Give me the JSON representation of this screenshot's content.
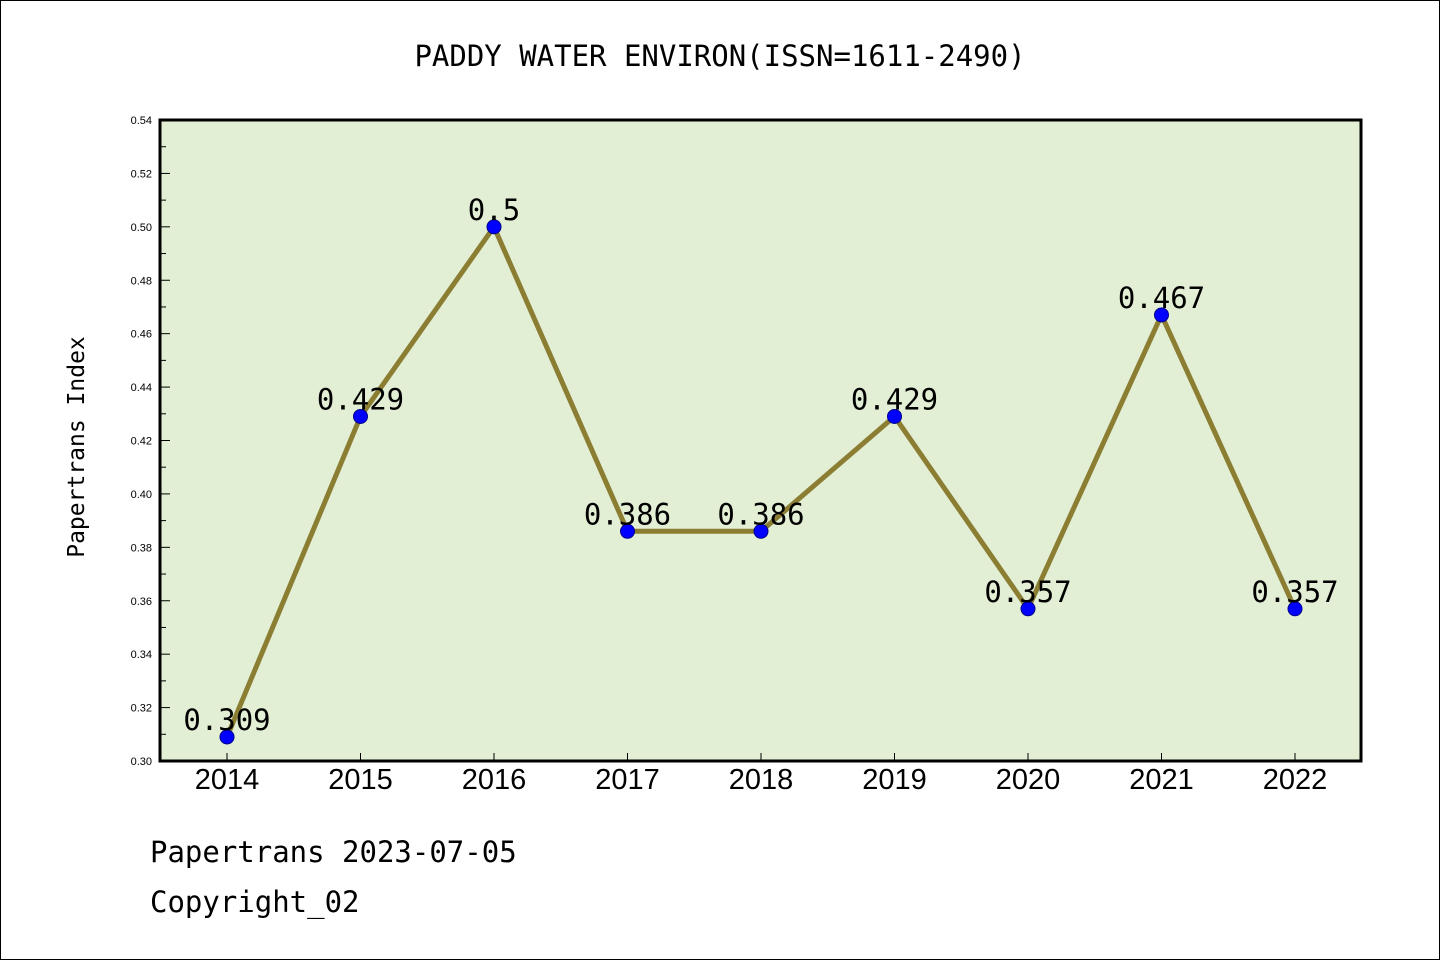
{
  "chart_data": {
    "type": "line",
    "title": "PADDY WATER ENVIRON(ISSN=1611-2490)",
    "xlabel": "",
    "ylabel": "Papertrans Index",
    "categories": [
      "2014",
      "2015",
      "2016",
      "2017",
      "2018",
      "2019",
      "2020",
      "2021",
      "2022"
    ],
    "series": [
      {
        "values": [
          0.309,
          0.429,
          0.5,
          0.386,
          0.386,
          0.429,
          0.357,
          0.467,
          0.357
        ],
        "labels": [
          "0.309",
          "0.429",
          "0.5",
          "0.386",
          "0.386",
          "0.429",
          "0.357",
          "0.467",
          "0.357"
        ]
      }
    ],
    "ylim": [
      0.3,
      0.54
    ],
    "yticks": [
      "0.30",
      "0.32",
      "0.34",
      "0.36",
      "0.38",
      "0.40",
      "0.42",
      "0.44",
      "0.46",
      "0.48",
      "0.50",
      "0.52",
      "0.54"
    ],
    "grid": false,
    "legend": "none",
    "colors": {
      "plot_background": "#e2efd5",
      "line": "#8b7e33",
      "marker": "#0000ff",
      "axes": "#000000"
    }
  },
  "footer": {
    "line1": "Papertrans 2023-07-05",
    "line2": "Copyright_02"
  }
}
